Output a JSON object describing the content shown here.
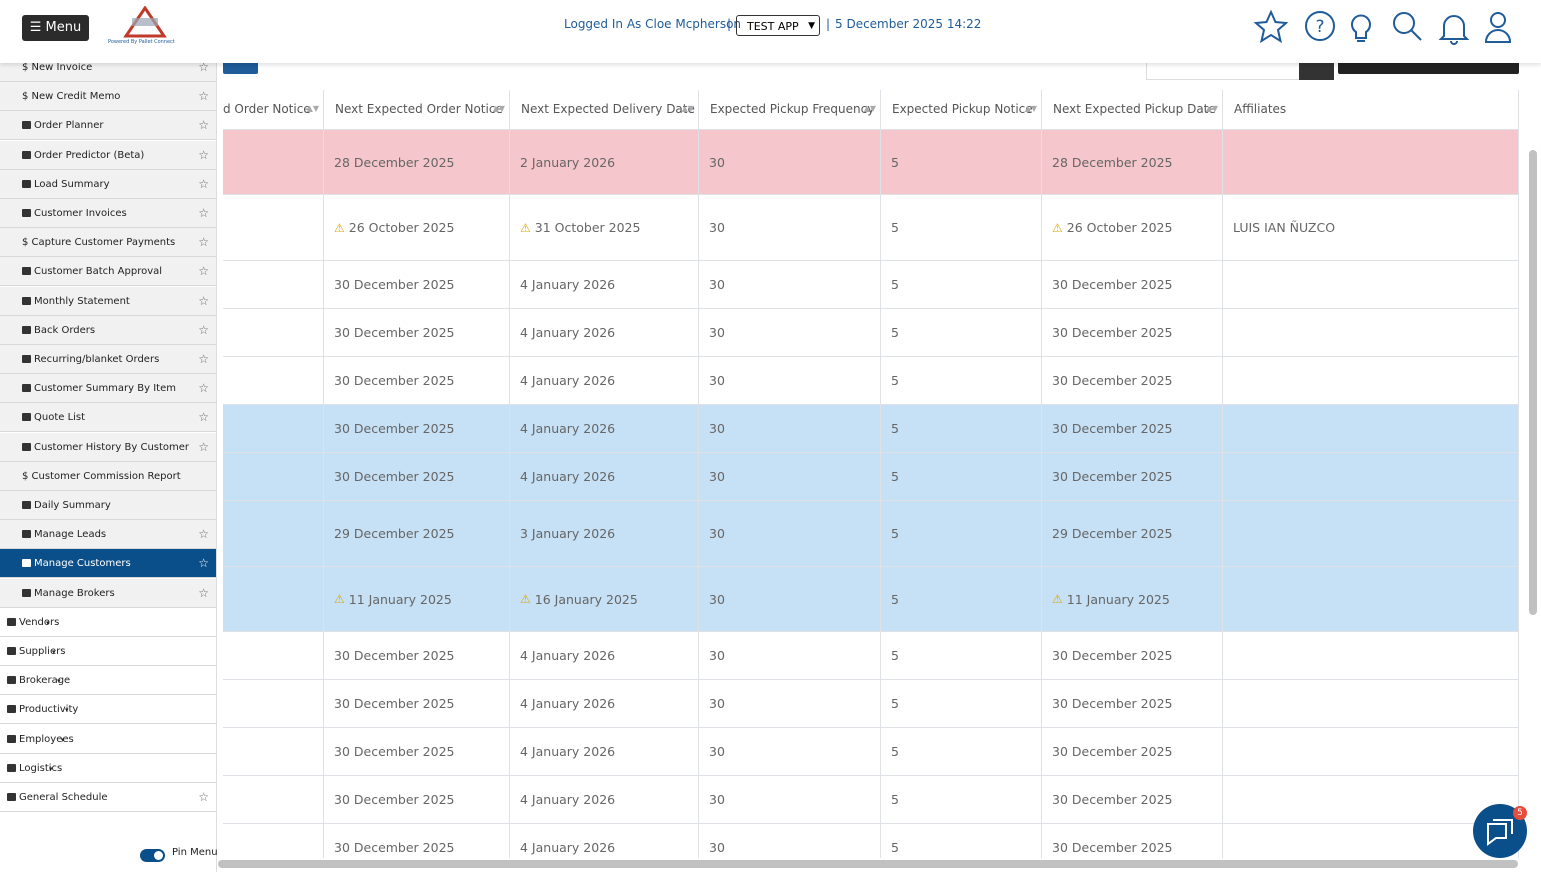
{
  "header": {
    "menu": "Menu",
    "logo_caption": "Powered By Pallet Connect",
    "logged_in": "Logged In As Cloe Mcpherson",
    "separator": "|",
    "app": "TEST APP",
    "datetime": "5 December 2025 14:22"
  },
  "sidebar": {
    "items": [
      {
        "label": "$ New Invoice",
        "level": "sub",
        "star": true
      },
      {
        "label": "$ New Credit Memo",
        "level": "sub",
        "star": true
      },
      {
        "label": "Order Planner",
        "level": "sub",
        "star": true
      },
      {
        "label": "Order Predictor (Beta)",
        "level": "sub",
        "star": true
      },
      {
        "label": "Load Summary",
        "level": "sub",
        "star": true
      },
      {
        "label": "Customer Invoices",
        "level": "sub",
        "star": true
      },
      {
        "label": "$ Capture Customer Payments",
        "level": "sub",
        "star": true
      },
      {
        "label": "Customer Batch Approval",
        "level": "sub",
        "star": true
      },
      {
        "label": "Monthly Statement",
        "level": "sub",
        "star": true
      },
      {
        "label": "Back Orders",
        "level": "sub",
        "star": true
      },
      {
        "label": "Recurring/blanket Orders",
        "level": "sub",
        "star": true
      },
      {
        "label": "Customer Summary By Item",
        "level": "sub",
        "star": true
      },
      {
        "label": "Quote List",
        "level": "sub",
        "star": true
      },
      {
        "label": "Customer History By Customer",
        "level": "sub",
        "star": true
      },
      {
        "label": "$ Customer Commission Report",
        "level": "sub",
        "star": false
      },
      {
        "label": "Daily Summary",
        "level": "sub",
        "star": false
      },
      {
        "label": "Manage Leads",
        "level": "sub",
        "star": true
      },
      {
        "label": "Manage Customers",
        "level": "sub",
        "star": true,
        "active": true
      },
      {
        "label": "Manage Brokers",
        "level": "sub",
        "star": true
      },
      {
        "label": "Vendors",
        "level": "section",
        "star": false
      },
      {
        "label": "Suppliers",
        "level": "section",
        "star": false
      },
      {
        "label": "Brokerage",
        "level": "section",
        "star": false
      },
      {
        "label": "Productivity",
        "level": "section",
        "star": false
      },
      {
        "label": "Employees",
        "level": "section",
        "star": false
      },
      {
        "label": "Logistics",
        "level": "section",
        "star": false
      },
      {
        "label": "General Schedule",
        "level": "section",
        "star": true
      }
    ],
    "pin_menu": "Pin Menu",
    "pinned": true
  },
  "table": {
    "columns": [
      "d Order Notice",
      "Next Expected Order Notice",
      "Next Expected Delivery Date",
      "Expected Pickup Frequency",
      "Expected Pickup Notice",
      "Next Expected Pickup Date",
      "Affiliates"
    ],
    "rows": [
      {
        "color": "#f5c6cb",
        "warning": false,
        "cells": [
          "28 December 2025",
          "2 January 2026",
          30,
          5,
          "28 December 2025"
        ]
      },
      {
        "color": "#ffffff",
        "warning": true,
        "cells": [
          "26 October 2025",
          "31 October 2025",
          30,
          5,
          "26 October 2025"
        ],
        "affiliates": "LUIS IAN ÑUZCO"
      },
      {
        "color": "#ffffff",
        "warning": false,
        "cells": [
          "30 December 2025",
          "4 January 2026",
          30,
          5,
          "30 December 2025"
        ]
      },
      {
        "color": "#ffffff",
        "warning": false,
        "cells": [
          "30 December 2025",
          "4 January 2026",
          30,
          5,
          "30 December 2025"
        ]
      },
      {
        "color": "#ffffff",
        "warning": false,
        "cells": [
          "30 December 2025",
          "4 January 2026",
          30,
          5,
          "30 December 2025"
        ]
      },
      {
        "color": "#c6e0f5",
        "warning": false,
        "cells": [
          "30 December 2025",
          "4 January 2026",
          30,
          5,
          "30 December 2025"
        ]
      },
      {
        "color": "#c6e0f5",
        "warning": false,
        "cells": [
          "30 December 2025",
          "4 January 2026",
          30,
          5,
          "30 December 2025"
        ]
      },
      {
        "color": "#c6e0f5",
        "warning": false,
        "cells": [
          "29 December 2025",
          "3 January 2026",
          30,
          5,
          "29 December 2025"
        ]
      },
      {
        "color": "#c6e0f5",
        "warning": true,
        "cells": [
          "11 January 2025",
          "16 January 2025",
          30,
          5,
          "11 January 2025"
        ]
      },
      {
        "color": "#ffffff",
        "warning": false,
        "cells": [
          "30 December 2025",
          "4 January 2026",
          30,
          5,
          "30 December 2025"
        ]
      },
      {
        "color": "#ffffff",
        "warning": false,
        "cells": [
          "30 December 2025",
          "4 January 2026",
          30,
          5,
          "30 December 2025"
        ]
      },
      {
        "color": "#ffffff",
        "warning": false,
        "cells": [
          "30 December 2025",
          "4 January 2026",
          30,
          5,
          "30 December 2025"
        ]
      },
      {
        "color": "#ffffff",
        "warning": false,
        "cells": [
          "30 December 2025",
          "4 January 2026",
          30,
          5,
          "30 December 2025"
        ]
      },
      {
        "color": "#ffffff",
        "warning": false,
        "cells": [
          "30 December 2025",
          "4 January 2026",
          30,
          5,
          "30 December 2025"
        ]
      }
    ]
  },
  "chat": {
    "badge": 5
  }
}
